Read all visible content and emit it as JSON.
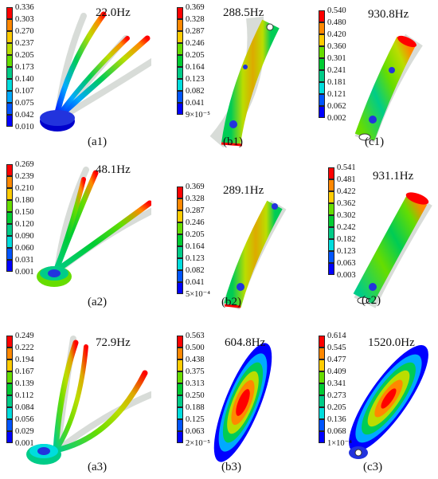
{
  "palette": [
    "#0000ff",
    "#0055ff",
    "#00aaff",
    "#00dddd",
    "#00cc88",
    "#00cc33",
    "#66dd00",
    "#bbdd00",
    "#ffcc00",
    "#ff8800",
    "#ff0000"
  ],
  "panels": [
    {
      "id": "a1",
      "label": "(a1)",
      "freq": "22.0Hz",
      "legend": [
        "0.336",
        "0.303",
        "0.270",
        "0.237",
        "0.205",
        "0.173",
        "0.140",
        "0.107",
        "0.075",
        "0.042",
        "0.010"
      ]
    },
    {
      "id": "b1",
      "label": "(b1)",
      "freq": "288.5Hz",
      "legend": [
        "0.369",
        "0.328",
        "0.287",
        "0.246",
        "0.205",
        "0.164",
        "0.123",
        "0.082",
        "0.041",
        "9×10⁻⁵"
      ]
    },
    {
      "id": "c1",
      "label": "(c1)",
      "freq": "930.8Hz",
      "legend": [
        "0.540",
        "0.480",
        "0.420",
        "0.360",
        "0.301",
        "0.241",
        "0.181",
        "0.121",
        "0.062",
        "0.002"
      ]
    },
    {
      "id": "a2",
      "label": "(a2)",
      "freq": "48.1Hz",
      "legend": [
        "0.269",
        "0.239",
        "0.210",
        "0.180",
        "0.150",
        "0.120",
        "0.090",
        "0.060",
        "0.031",
        "0.001"
      ]
    },
    {
      "id": "b2",
      "label": "(b2)",
      "freq": "289.1Hz",
      "legend": [
        "0.369",
        "0.328",
        "0.287",
        "0.246",
        "0.205",
        "0.164",
        "0.123",
        "0.082",
        "0.041",
        "5×10⁻⁴"
      ]
    },
    {
      "id": "c2",
      "label": "(c2)",
      "freq": "931.1Hz",
      "legend": [
        "0.541",
        "0.481",
        "0.422",
        "0.362",
        "0.302",
        "0.242",
        "0.182",
        "0.123",
        "0.063",
        "0.003"
      ]
    },
    {
      "id": "a3",
      "label": "(a3)",
      "freq": "72.9Hz",
      "legend": [
        "0.249",
        "0.222",
        "0.194",
        "0.167",
        "0.139",
        "0.112",
        "0.084",
        "0.056",
        "0.029",
        "0.001"
      ]
    },
    {
      "id": "b3",
      "label": "(b3)",
      "freq": "604.8Hz",
      "legend": [
        "0.563",
        "0.500",
        "0.438",
        "0.375",
        "0.313",
        "0.250",
        "0.188",
        "0.125",
        "0.063",
        "2×10⁻⁵"
      ]
    },
    {
      "id": "c3",
      "label": "(c3)",
      "freq": "1520.0Hz",
      "legend": [
        "0.614",
        "0.545",
        "0.477",
        "0.409",
        "0.341",
        "0.273",
        "0.205",
        "0.136",
        "0.068",
        "1×10⁻⁴"
      ]
    }
  ]
}
